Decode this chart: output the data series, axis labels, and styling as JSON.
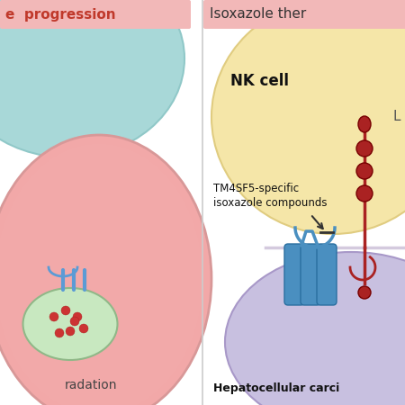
{
  "bg_color": "#ffffff",
  "left_panel": {
    "title_text": "e  progression",
    "title_color": "#c0392b",
    "title_bg": "#f2b8b8",
    "nk_cell_color": "#a8d8d8",
    "nk_cell_edge": "#90c8c8",
    "cancer_cell_color": "#f2a8a8",
    "cancer_cell_edge": "#d89898",
    "nucleus_color": "#c8e8c0",
    "nucleus_edge": "#90b888",
    "dot_color": "#cc3333",
    "protein_color": "#5b9bd5",
    "text_radation": "radation",
    "text_radation_color": "#444444"
  },
  "right_panel": {
    "title_text": "Isoxazole ther",
    "title_bg": "#f2b8b8",
    "nk_cell_color": "#f5e6a8",
    "nk_cell_edge": "#e0cc80",
    "cancer_cell_color": "#c8c0e0",
    "cancer_cell_edge": "#a898c8",
    "nk_label": "NK cell",
    "cancer_label": "Hepatocellular carci",
    "annotation1": "TM4SF5-specific",
    "annotation2": "isoxazole compounds",
    "L_label": "L",
    "tm4sf5_color": "#4a8fc0",
    "slamf7_color": "#aa2222"
  }
}
